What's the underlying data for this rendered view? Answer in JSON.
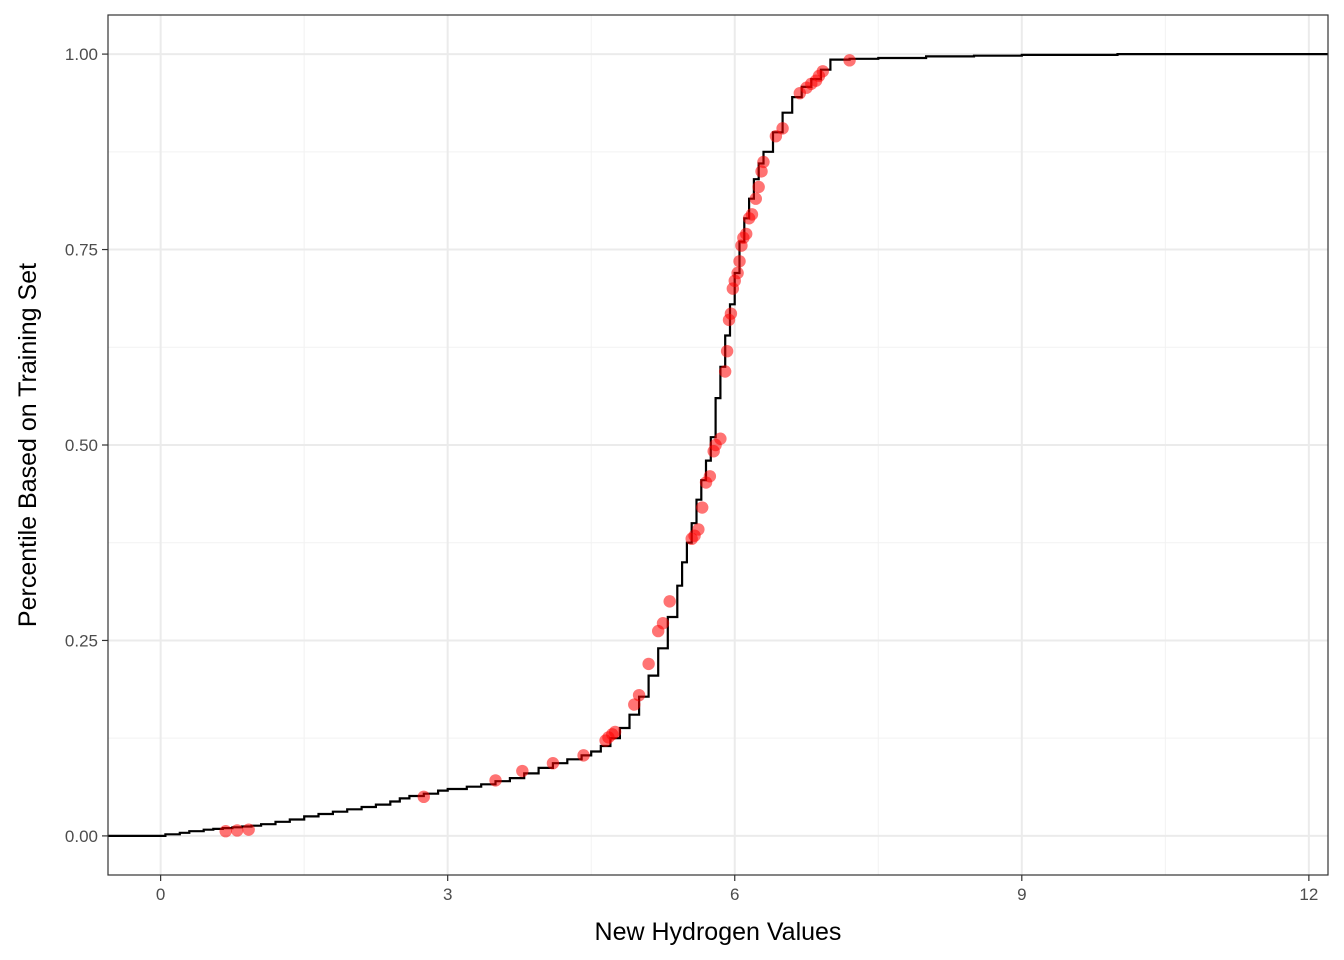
{
  "chart_data": {
    "type": "line",
    "xlabel": "New Hydrogen Values",
    "ylabel": "Percentile Based on Training Set",
    "xlim": [
      -0.55,
      12.2
    ],
    "ylim": [
      -0.05,
      1.05
    ],
    "x_ticks": [
      0,
      3,
      6,
      9,
      12
    ],
    "x_tick_labels": [
      "0",
      "3",
      "6",
      "9",
      "12"
    ],
    "y_ticks": [
      0,
      0.25,
      0.5,
      0.75,
      1.0
    ],
    "y_tick_labels": [
      "0.00",
      "0.25",
      "0.50",
      "0.75",
      "1.00"
    ],
    "grid": true,
    "colors": {
      "line": "#000000",
      "points": "#ff0000",
      "panel_border": "#333333",
      "grid_major": "#ebebeb"
    },
    "series": [
      {
        "type": "step",
        "x": [
          0.0,
          0.05,
          0.2,
          0.3,
          0.45,
          0.55,
          0.65,
          0.75,
          0.85,
          0.95,
          1.05,
          1.2,
          1.35,
          1.5,
          1.65,
          1.8,
          1.95,
          2.1,
          2.25,
          2.4,
          2.5,
          2.6,
          2.75,
          2.9,
          3.0,
          3.2,
          3.35,
          3.5,
          3.65,
          3.8,
          3.95,
          4.1,
          4.25,
          4.4,
          4.5,
          4.6,
          4.7,
          4.8,
          4.9,
          5.0,
          5.1,
          5.2,
          5.3,
          5.4,
          5.45,
          5.5,
          5.55,
          5.6,
          5.65,
          5.7,
          5.75,
          5.8,
          5.85,
          5.9,
          5.95,
          6.0,
          6.05,
          6.1,
          6.15,
          6.2,
          6.25,
          6.3,
          6.4,
          6.5,
          6.6,
          6.7,
          6.8,
          6.9,
          7.0,
          7.2,
          7.5,
          8.0,
          8.5,
          9.0,
          9.5,
          10.0,
          10.5,
          11.0,
          11.5,
          12.0,
          12.2
        ],
        "y": [
          0.0,
          0.002,
          0.004,
          0.006,
          0.008,
          0.009,
          0.01,
          0.011,
          0.012,
          0.013,
          0.015,
          0.018,
          0.021,
          0.025,
          0.028,
          0.031,
          0.034,
          0.037,
          0.04,
          0.044,
          0.048,
          0.051,
          0.054,
          0.058,
          0.06,
          0.063,
          0.066,
          0.07,
          0.074,
          0.08,
          0.087,
          0.093,
          0.098,
          0.103,
          0.108,
          0.115,
          0.125,
          0.138,
          0.155,
          0.178,
          0.205,
          0.24,
          0.28,
          0.32,
          0.35,
          0.375,
          0.4,
          0.43,
          0.455,
          0.48,
          0.51,
          0.56,
          0.6,
          0.64,
          0.68,
          0.72,
          0.76,
          0.79,
          0.815,
          0.84,
          0.86,
          0.875,
          0.9,
          0.925,
          0.945,
          0.958,
          0.968,
          0.98,
          0.993,
          0.994,
          0.995,
          0.997,
          0.998,
          0.999,
          0.999,
          1.0,
          1.0,
          1.0,
          1.0,
          1.0,
          1.0
        ]
      },
      {
        "type": "scatter",
        "x": [
          0.68,
          0.8,
          0.92,
          2.75,
          3.5,
          3.78,
          4.1,
          4.42,
          4.65,
          4.68,
          4.72,
          4.75,
          4.95,
          5.0,
          5.1,
          5.2,
          5.25,
          5.32,
          5.55,
          5.58,
          5.62,
          5.66,
          5.7,
          5.74,
          5.78,
          5.8,
          5.85,
          5.9,
          5.92,
          5.94,
          5.96,
          5.98,
          6.0,
          6.03,
          6.05,
          6.07,
          6.09,
          6.12,
          6.15,
          6.18,
          6.22,
          6.25,
          6.28,
          6.3,
          6.43,
          6.5,
          6.68,
          6.75,
          6.8,
          6.85,
          6.88,
          6.92,
          7.2
        ],
        "y": [
          0.006,
          0.007,
          0.008,
          0.05,
          0.071,
          0.083,
          0.093,
          0.103,
          0.122,
          0.126,
          0.13,
          0.133,
          0.168,
          0.18,
          0.22,
          0.262,
          0.272,
          0.3,
          0.38,
          0.384,
          0.392,
          0.42,
          0.452,
          0.46,
          0.492,
          0.5,
          0.508,
          0.594,
          0.62,
          0.66,
          0.668,
          0.7,
          0.71,
          0.72,
          0.735,
          0.755,
          0.765,
          0.77,
          0.79,
          0.795,
          0.815,
          0.83,
          0.85,
          0.862,
          0.895,
          0.905,
          0.95,
          0.957,
          0.962,
          0.966,
          0.972,
          0.978,
          0.992
        ]
      }
    ]
  }
}
